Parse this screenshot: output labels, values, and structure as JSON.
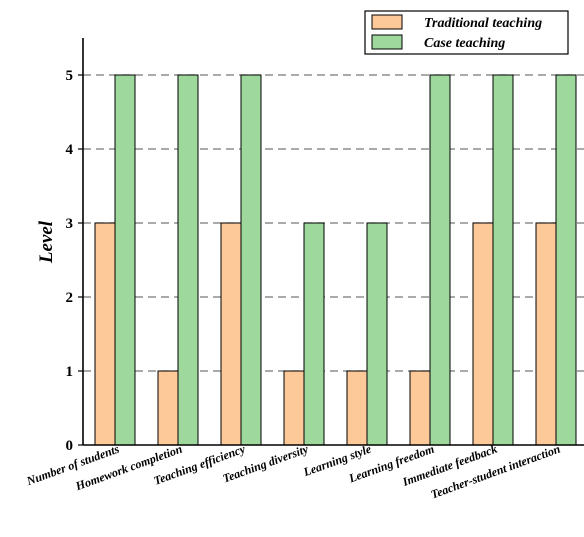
{
  "chart_data": {
    "type": "bar",
    "categories": [
      "Number of students",
      "Homework completion",
      "Teaching efficiency",
      "Teaching diversity",
      "Learning style",
      "Learning freedom",
      "Immediate feedback",
      "Teacher-student interaction"
    ],
    "series": [
      {
        "name": "Traditional teaching",
        "values": [
          3,
          1,
          3,
          1,
          1,
          1,
          3,
          3
        ],
        "color": "#fdc998"
      },
      {
        "name": "Case teaching",
        "values": [
          5,
          5,
          5,
          3,
          3,
          5,
          5,
          5
        ],
        "color": "#9fd89c"
      }
    ],
    "ylabel": "Level",
    "xlabel": "",
    "ylim": [
      0,
      5.5
    ],
    "yticks": [
      "0",
      "1",
      "2",
      "3",
      "4",
      "5"
    ],
    "grid": "horizontal dashed",
    "legend_position": "top-right"
  }
}
